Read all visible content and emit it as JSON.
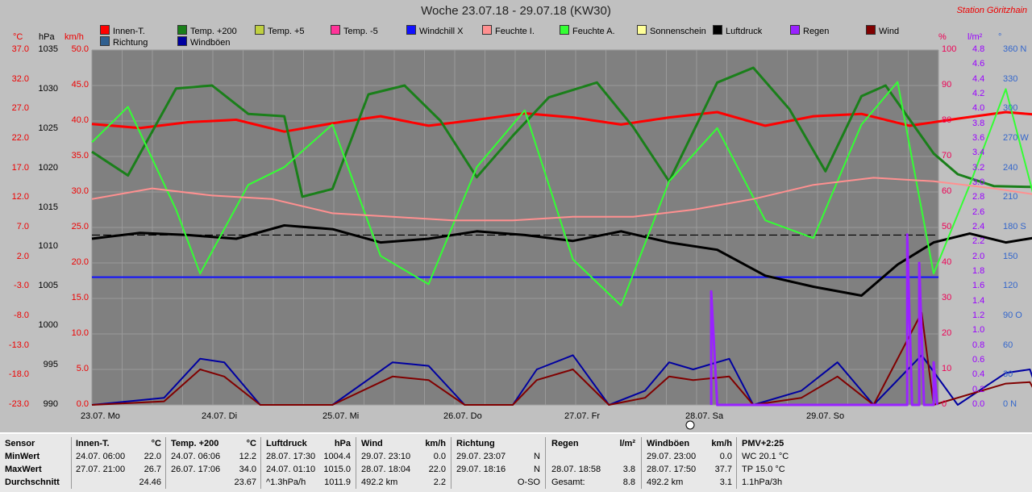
{
  "title": "Woche 23.07.18 - 29.07.18 (KW30)",
  "station": "Station Göritzhain",
  "legend": [
    {
      "label": "Innen-T.",
      "color": "#ff0000"
    },
    {
      "label": "Richtung",
      "color": "#2f5f8f"
    },
    {
      "label": "Temp. +200",
      "color": "#1a7f1a"
    },
    {
      "label": "Windböen",
      "color": "#0000a0"
    },
    {
      "label": "Temp. +5",
      "color": "#c0d040"
    },
    {
      "label": "Temp. -5",
      "color": "#ff3399"
    },
    {
      "label": "Windchill X",
      "color": "#1010ff"
    },
    {
      "label": "Feuchte I.",
      "color": "#ff9090"
    },
    {
      "label": "Feuchte A.",
      "color": "#33ff33"
    },
    {
      "label": "Sonnenschein",
      "color": "#ffff99"
    },
    {
      "label": "Luftdruck",
      "color": "#000000"
    },
    {
      "label": "Regen",
      "color": "#9922ff"
    },
    {
      "label": "Wind",
      "color": "#800000"
    }
  ],
  "units": {
    "temp": "°C",
    "hpa": "hPa",
    "kmh": "km/h",
    "pct": "%",
    "lm2": "l/m²",
    "deg": "°"
  },
  "axes": {
    "temp": [
      "37.0",
      "32.0",
      "27.0",
      "22.0",
      "17.0",
      "12.0",
      "7.0",
      "2.0",
      "-3.0",
      "-8.0",
      "-13.0",
      "-18.0",
      "-23.0"
    ],
    "hpa": [
      "1035",
      "1030",
      "1025",
      "1020",
      "1015",
      "1010",
      "1005",
      "1000",
      "995",
      "990"
    ],
    "kmh": [
      "50.0",
      "45.0",
      "40.0",
      "35.0",
      "30.0",
      "25.0",
      "20.0",
      "15.0",
      "10.0",
      "5.0",
      "0.0"
    ],
    "pct": [
      "100",
      "90",
      "80",
      "70",
      "60",
      "50",
      "40",
      "30",
      "20",
      "10",
      "0"
    ],
    "lm2": [
      "4.8",
      "4.6",
      "4.4",
      "4.2",
      "4.0",
      "3.8",
      "3.6",
      "3.4",
      "3.2",
      "3.0",
      "2.8",
      "2.6",
      "2.4",
      "2.2",
      "2.0",
      "1.8",
      "1.6",
      "1.4",
      "1.2",
      "1.0",
      "0.8",
      "0.6",
      "0.4",
      "0.2",
      "0.0"
    ],
    "deg": [
      "360 N",
      "330",
      "300",
      "270 W",
      "240",
      "210",
      "180 S",
      "150",
      "120",
      "90 O",
      "60",
      "30",
      "0 N"
    ],
    "days": [
      "23.07. Mo",
      "24.07. Di",
      "25.07. Mi",
      "26.07. Do",
      "27.07. Fr",
      "28.07. Sa",
      "29.07. So"
    ]
  },
  "chart_data": {
    "type": "line",
    "title": "Woche 23.07.18 - 29.07.18 (KW30)",
    "x": [
      "23.07. Mo",
      "24.07. Di",
      "25.07. Mi",
      "26.07. Do",
      "27.07. Fr",
      "28.07. Sa",
      "29.07. So"
    ],
    "reference_lines": {
      "pressure_dashed_hpa": 1013,
      "windchill_blue_kmh": 18
    },
    "series": [
      {
        "name": "Innen-T.",
        "unit": "°C",
        "points": [
          [
            0,
            24.5
          ],
          [
            0.4,
            23.8
          ],
          [
            0.8,
            24.8
          ],
          [
            1.2,
            25.2
          ],
          [
            1.6,
            23.2
          ],
          [
            2,
            24.6
          ],
          [
            2.4,
            25.8
          ],
          [
            2.8,
            24.2
          ],
          [
            3.2,
            25.2
          ],
          [
            3.6,
            26.3
          ],
          [
            4,
            25.6
          ],
          [
            4.4,
            24.4
          ],
          [
            4.8,
            25.6
          ],
          [
            5.2,
            26.5
          ],
          [
            5.6,
            24.2
          ],
          [
            6,
            25.8
          ],
          [
            6.4,
            26.2
          ],
          [
            6.8,
            24.2
          ],
          [
            7.2,
            25.4
          ],
          [
            7.6,
            26.5
          ],
          [
            7.9,
            26
          ]
        ]
      },
      {
        "name": "Temp. +200",
        "unit": "°C",
        "points": [
          [
            0,
            19.8
          ],
          [
            0.3,
            15.8
          ],
          [
            0.7,
            30.5
          ],
          [
            1.0,
            31.0
          ],
          [
            1.3,
            26.2
          ],
          [
            1.6,
            25.8
          ],
          [
            1.75,
            12.2
          ],
          [
            2.0,
            13.5
          ],
          [
            2.3,
            29.5
          ],
          [
            2.6,
            31.0
          ],
          [
            2.9,
            25.0
          ],
          [
            3.2,
            15.5
          ],
          [
            3.5,
            22.5
          ],
          [
            3.8,
            29.0
          ],
          [
            4.2,
            31.5
          ],
          [
            4.5,
            24.0
          ],
          [
            4.8,
            14.8
          ],
          [
            5.2,
            31.5
          ],
          [
            5.5,
            34.0
          ],
          [
            5.8,
            27.0
          ],
          [
            6.1,
            16.5
          ],
          [
            6.4,
            29.2
          ],
          [
            6.6,
            31.0
          ],
          [
            7.0,
            19.5
          ],
          [
            7.2,
            16.0
          ],
          [
            7.5,
            14.0
          ],
          [
            7.9,
            13.8
          ]
        ]
      },
      {
        "name": "Luftdruck",
        "unit": "hPa",
        "points": [
          [
            0,
            1012.5
          ],
          [
            0.4,
            1013.3
          ],
          [
            0.8,
            1013.0
          ],
          [
            1.2,
            1012.5
          ],
          [
            1.6,
            1014.3
          ],
          [
            2.0,
            1013.8
          ],
          [
            2.4,
            1012.0
          ],
          [
            2.8,
            1012.5
          ],
          [
            3.2,
            1013.5
          ],
          [
            3.6,
            1013.0
          ],
          [
            4.0,
            1012.2
          ],
          [
            4.4,
            1013.5
          ],
          [
            4.8,
            1012.0
          ],
          [
            5.2,
            1011.0
          ],
          [
            5.6,
            1007.5
          ],
          [
            6.0,
            1006.0
          ],
          [
            6.4,
            1004.8
          ],
          [
            6.7,
            1009.0
          ],
          [
            7.0,
            1012.0
          ],
          [
            7.3,
            1013.2
          ],
          [
            7.6,
            1012.0
          ],
          [
            7.9,
            1012.8
          ]
        ]
      },
      {
        "name": "Feuchte A.",
        "unit": "%",
        "points": [
          [
            0,
            74
          ],
          [
            0.3,
            84
          ],
          [
            0.7,
            55
          ],
          [
            0.9,
            37
          ],
          [
            1.3,
            62
          ],
          [
            1.6,
            67
          ],
          [
            2.0,
            79
          ],
          [
            2.4,
            42
          ],
          [
            2.8,
            34
          ],
          [
            3.2,
            67
          ],
          [
            3.6,
            83
          ],
          [
            4.0,
            41
          ],
          [
            4.4,
            28
          ],
          [
            4.8,
            63
          ],
          [
            5.2,
            78
          ],
          [
            5.6,
            52
          ],
          [
            6.0,
            47
          ],
          [
            6.4,
            79
          ],
          [
            6.7,
            91
          ],
          [
            7.0,
            37
          ],
          [
            7.3,
            62
          ],
          [
            7.6,
            89
          ],
          [
            7.9,
            50
          ]
        ]
      },
      {
        "name": "Feuchte I.",
        "unit": "%",
        "points": [
          [
            0,
            58
          ],
          [
            0.5,
            61
          ],
          [
            1.0,
            59
          ],
          [
            1.5,
            58
          ],
          [
            2.0,
            54
          ],
          [
            2.5,
            53
          ],
          [
            3.0,
            52
          ],
          [
            3.5,
            52
          ],
          [
            4.0,
            53
          ],
          [
            4.5,
            53
          ],
          [
            5.0,
            55
          ],
          [
            5.5,
            58
          ],
          [
            6.0,
            62
          ],
          [
            6.5,
            64
          ],
          [
            7.0,
            63
          ],
          [
            7.5,
            61
          ],
          [
            7.9,
            59
          ]
        ]
      },
      {
        "name": "Windböen",
        "unit": "km/h",
        "points": [
          [
            0,
            0
          ],
          [
            0.6,
            1
          ],
          [
            0.9,
            6.5
          ],
          [
            1.1,
            6
          ],
          [
            1.4,
            0
          ],
          [
            2.0,
            0
          ],
          [
            2.5,
            6
          ],
          [
            2.8,
            5.5
          ],
          [
            3.1,
            0
          ],
          [
            3.5,
            0
          ],
          [
            3.7,
            5
          ],
          [
            4.0,
            7
          ],
          [
            4.3,
            0
          ],
          [
            4.6,
            2
          ],
          [
            4.8,
            6
          ],
          [
            5.0,
            5
          ],
          [
            5.3,
            6.5
          ],
          [
            5.5,
            0
          ],
          [
            5.9,
            2
          ],
          [
            6.2,
            6
          ],
          [
            6.5,
            0
          ],
          [
            6.9,
            7
          ],
          [
            7.2,
            0
          ],
          [
            7.6,
            4.5
          ],
          [
            7.8,
            5
          ],
          [
            7.9,
            0
          ]
        ]
      },
      {
        "name": "Wind",
        "unit": "km/h",
        "points": [
          [
            0,
            0
          ],
          [
            0.6,
            0.5
          ],
          [
            0.9,
            5
          ],
          [
            1.1,
            4
          ],
          [
            1.4,
            0
          ],
          [
            2.0,
            0
          ],
          [
            2.5,
            4
          ],
          [
            2.8,
            3.5
          ],
          [
            3.1,
            0
          ],
          [
            3.5,
            0
          ],
          [
            3.7,
            3.5
          ],
          [
            4.0,
            5
          ],
          [
            4.3,
            0
          ],
          [
            4.6,
            1
          ],
          [
            4.8,
            4
          ],
          [
            5.0,
            3.5
          ],
          [
            5.3,
            4
          ],
          [
            5.5,
            0
          ],
          [
            5.9,
            1
          ],
          [
            6.2,
            4
          ],
          [
            6.5,
            0
          ],
          [
            6.9,
            13
          ],
          [
            7.0,
            0
          ],
          [
            7.6,
            3
          ],
          [
            7.8,
            3.2
          ],
          [
            7.9,
            0
          ]
        ]
      },
      {
        "name": "Regen",
        "unit": "l/m²",
        "points": [
          [
            5.15,
            0
          ],
          [
            5.15,
            1.6
          ],
          [
            5.2,
            0
          ],
          [
            6.78,
            0
          ],
          [
            6.78,
            2.4
          ],
          [
            6.82,
            0
          ],
          [
            6.88,
            0
          ],
          [
            6.88,
            2.0
          ],
          [
            6.92,
            0
          ],
          [
            7.0,
            0
          ],
          [
            7.0,
            0.6
          ],
          [
            7.03,
            0
          ]
        ]
      }
    ]
  },
  "footer": {
    "sensor": {
      "h": "Sensor",
      "r1": "MinWert",
      "r2": "MaxWert",
      "r3": "Durchschnitt"
    },
    "innen": {
      "h": "Innen-T.",
      "u": "°C",
      "r1a": "24.07. 06:00",
      "r1b": "22.0",
      "r2a": "27.07. 21:00",
      "r2b": "26.7",
      "r3b": "24.46"
    },
    "temp": {
      "h": "Temp. +200",
      "u": "°C",
      "r1a": "24.07. 06:06",
      "r1b": "12.2",
      "r2a": "26.07. 17:06",
      "r2b": "34.0",
      "r3b": "23.67"
    },
    "luft": {
      "h": "Luftdruck",
      "u": "hPa",
      "r1a": "28.07. 17:30",
      "r1b": "1004.4",
      "r2a": "24.07. 01:10",
      "r2b": "1015.0",
      "r3a": "^1.3hPa/h",
      "r3b": "1011.9"
    },
    "wind": {
      "h": "Wind",
      "u": "km/h",
      "r1a": "29.07. 23:10",
      "r1b": "0.0",
      "r2a": "28.07. 18:04",
      "r2b": "22.0",
      "r3a": "492.2 km",
      "r3b": "2.2"
    },
    "richt": {
      "h": "Richtung",
      "r1a": "29.07. 23:07",
      "r1b": "N",
      "r2a": "29.07. 18:16",
      "r2b": "N",
      "r3b": "O-SO"
    },
    "regen": {
      "h": "Regen",
      "u": "l/m²",
      "r2a": "28.07. 18:58",
      "r2b": "3.8",
      "r3a": "Gesamt:",
      "r3b": "8.8"
    },
    "boen": {
      "h": "Windböen",
      "u": "km/h",
      "r1a": "29.07. 23:00",
      "r1b": "0.0",
      "r2a": "28.07. 17:50",
      "r2b": "37.7",
      "r3a": "492.2 km",
      "r3b": "3.1"
    },
    "pmv": {
      "h": "PMV+2:25",
      "r1": "WC 20.1 °C",
      "r2": "TP 15.0 °C",
      "r3": "1.1hPa/3h"
    }
  }
}
